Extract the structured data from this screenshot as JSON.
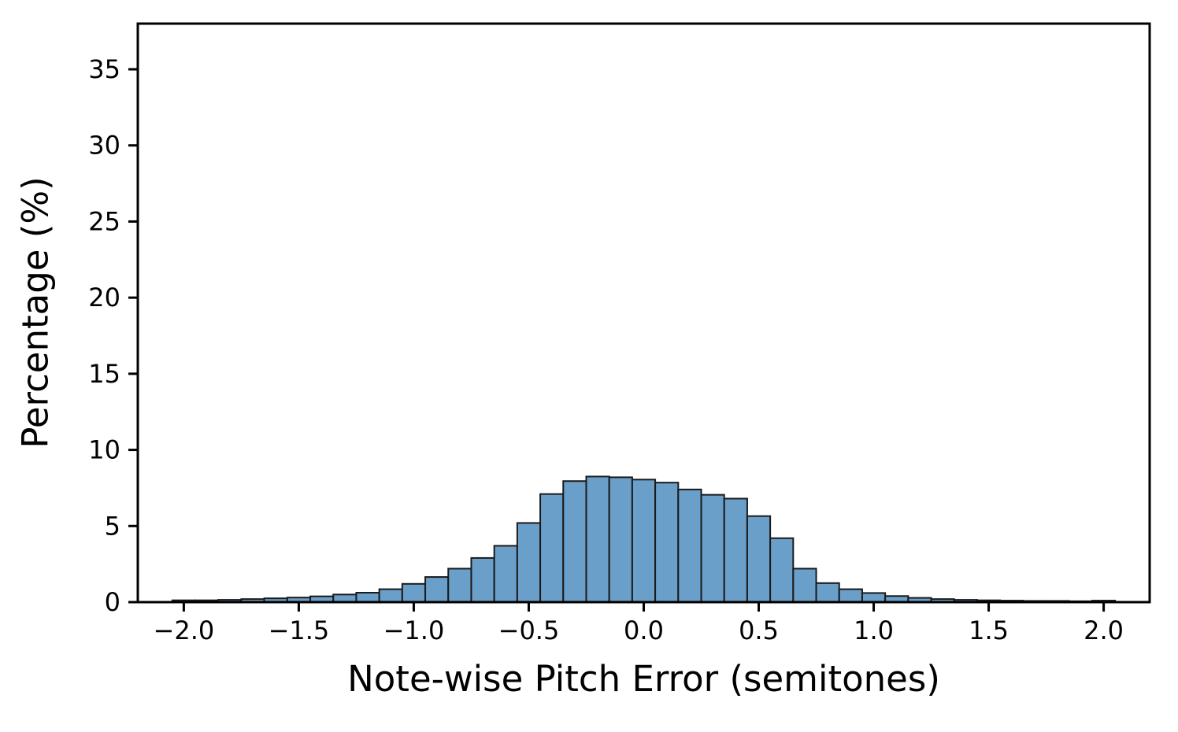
{
  "figure": {
    "background": "#ffffff"
  },
  "chart_data": {
    "type": "bar",
    "subtype": "histogram",
    "title": "",
    "xlabel": "Note-wise Pitch Error (semitones)",
    "ylabel": "Percentage (%)",
    "xlim": [
      -2.2,
      2.2
    ],
    "ylim": [
      0,
      38
    ],
    "grid": false,
    "legend_position": "none",
    "bar_fill": "#6a9fca",
    "bar_edge": "#1a1a1a",
    "axis_color": "#000000",
    "text_color": "#000000",
    "bin_width": 0.1,
    "bin_centers": [
      -2.0,
      -1.9,
      -1.8,
      -1.7,
      -1.6,
      -1.5,
      -1.4,
      -1.3,
      -1.2,
      -1.1,
      -1.0,
      -0.9,
      -0.8,
      -0.7,
      -0.6,
      -0.5,
      -0.4,
      -0.3,
      -0.2,
      -0.1,
      0.0,
      0.1,
      0.2,
      0.3,
      0.4,
      0.5,
      0.6,
      0.7,
      0.8,
      0.9,
      1.0,
      1.1,
      1.2,
      1.3,
      1.4,
      1.5,
      1.6,
      1.7,
      1.8,
      1.9,
      2.0
    ],
    "values": [
      0.12,
      0.12,
      0.15,
      0.2,
      0.25,
      0.3,
      0.38,
      0.5,
      0.62,
      0.85,
      1.2,
      1.65,
      2.2,
      2.9,
      3.7,
      5.2,
      7.1,
      7.95,
      8.25,
      8.2,
      8.05,
      7.85,
      7.4,
      7.05,
      6.8,
      5.65,
      4.2,
      2.2,
      1.25,
      0.85,
      0.6,
      0.4,
      0.28,
      0.2,
      0.15,
      0.12,
      0.1,
      0.08,
      0.08,
      0.06,
      0.1
    ],
    "x_ticks": [
      -2.0,
      -1.5,
      -1.0,
      -0.5,
      0.0,
      0.5,
      1.0,
      1.5,
      2.0
    ],
    "x_tick_labels": [
      "−2.0",
      "−1.5",
      "−1.0",
      "−0.5",
      "0.0",
      "0.5",
      "1.0",
      "1.5",
      "2.0"
    ],
    "y_ticks": [
      0,
      5,
      10,
      15,
      20,
      25,
      30,
      35
    ],
    "y_tick_labels": [
      "0",
      "5",
      "10",
      "15",
      "20",
      "25",
      "30",
      "35"
    ]
  }
}
